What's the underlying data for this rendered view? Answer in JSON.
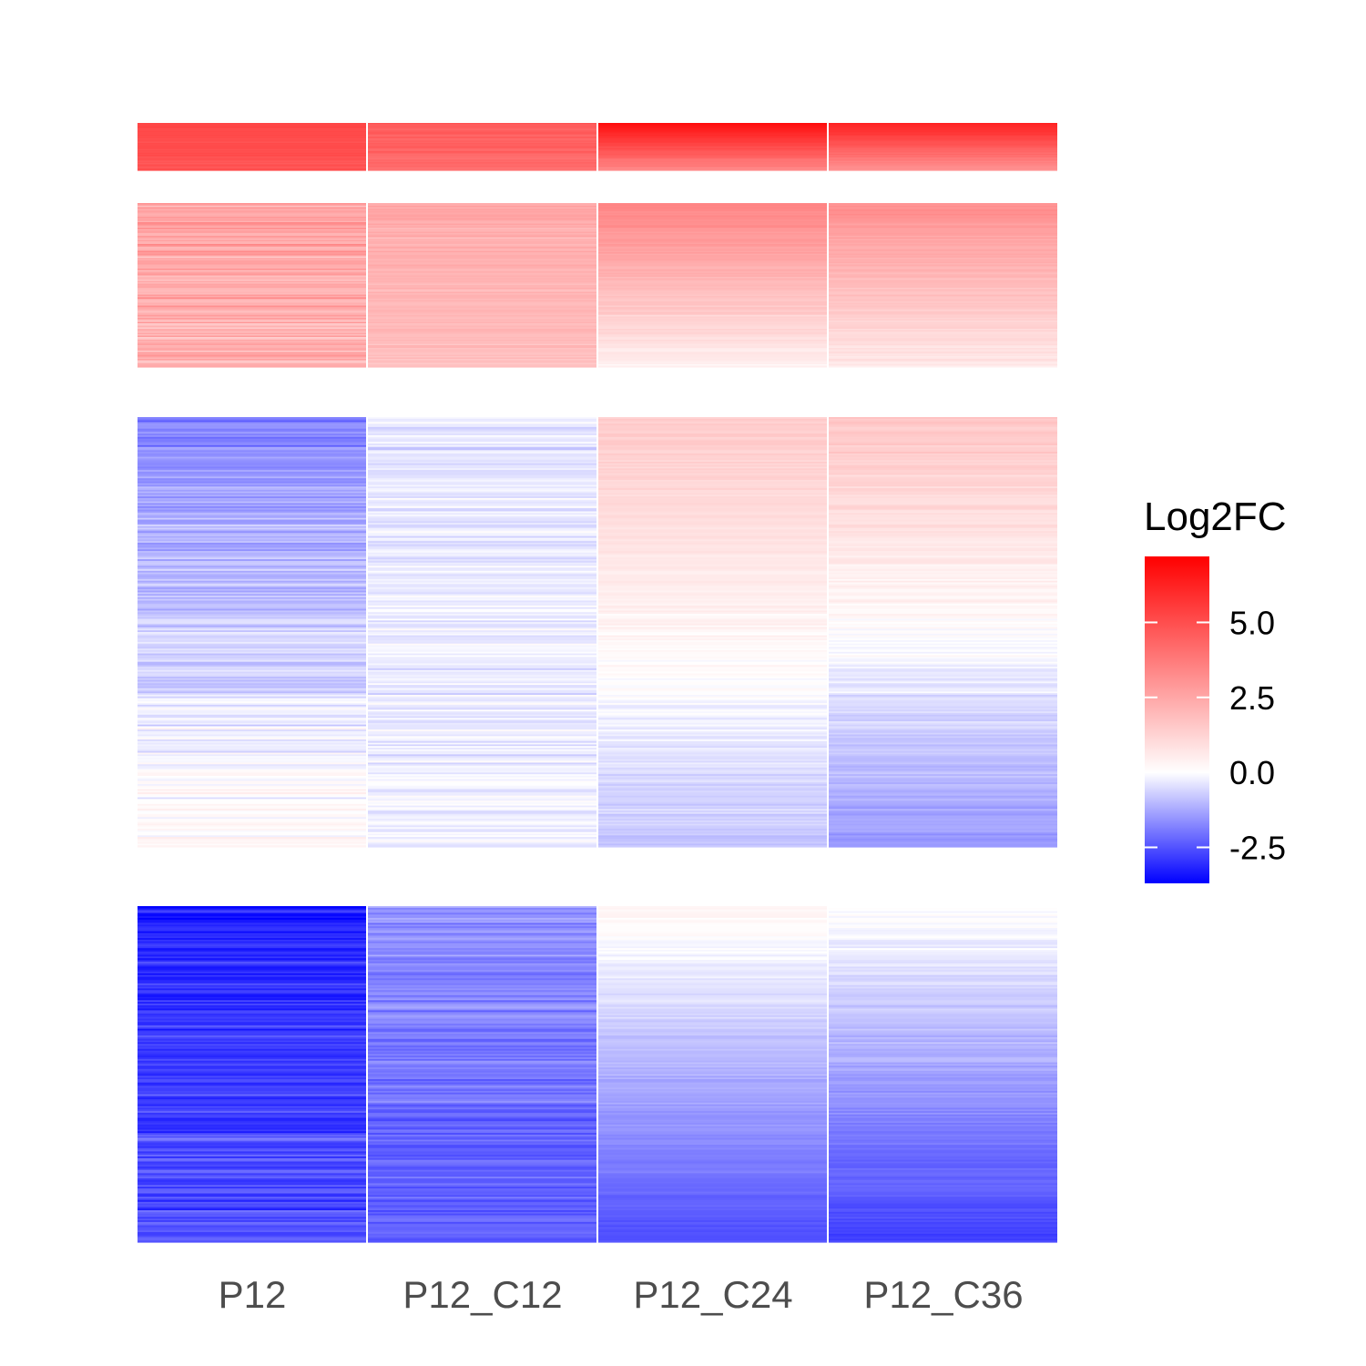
{
  "chart_data": {
    "type": "heatmap",
    "title": "",
    "xlabel": "",
    "ylabel": "",
    "columns": [
      "P12",
      "P12_C12",
      "P12_C24",
      "P12_C36"
    ],
    "clusters": [
      {
        "label": "",
        "rows": 40,
        "start": [
          5.2,
          4.6,
          6.8,
          6.2
        ],
        "end": [
          4.8,
          4.2,
          3.4,
          3.1
        ],
        "noise": [
          0.5,
          0.6,
          0.3,
          0.3
        ]
      },
      {
        "label": "",
        "rows": 120,
        "start": [
          2.6,
          2.4,
          3.5,
          3.2
        ],
        "end": [
          2.2,
          1.8,
          0.4,
          0.6
        ],
        "noise": [
          1.4,
          0.6,
          0.4,
          0.4
        ]
      },
      {
        "label": "",
        "rows": 260,
        "start": [
          -1.8,
          -0.4,
          1.5,
          1.6
        ],
        "end": [
          0.3,
          -0.2,
          -0.9,
          -1.5
        ],
        "noise": [
          0.9,
          0.7,
          0.4,
          0.5
        ]
      },
      {
        "label": "",
        "rows": 200,
        "start": [
          -3.2,
          -1.6,
          0.3,
          0.1
        ],
        "end": [
          -2.4,
          -2.4,
          -2.6,
          -2.8
        ],
        "noise": [
          1.1,
          0.8,
          0.3,
          0.4
        ]
      }
    ],
    "legend": {
      "title": "Log2FC",
      "placement": "right",
      "min": -3.7,
      "max": 7.2,
      "ticks": [
        5.0,
        2.5,
        0.0,
        -2.5
      ],
      "tick_labels": [
        "5.0",
        "2.5",
        "0.0",
        "-2.5"
      ],
      "colors": {
        "low": "#0000ff",
        "mid": "#ffffff",
        "high": "#ff0000"
      }
    }
  }
}
